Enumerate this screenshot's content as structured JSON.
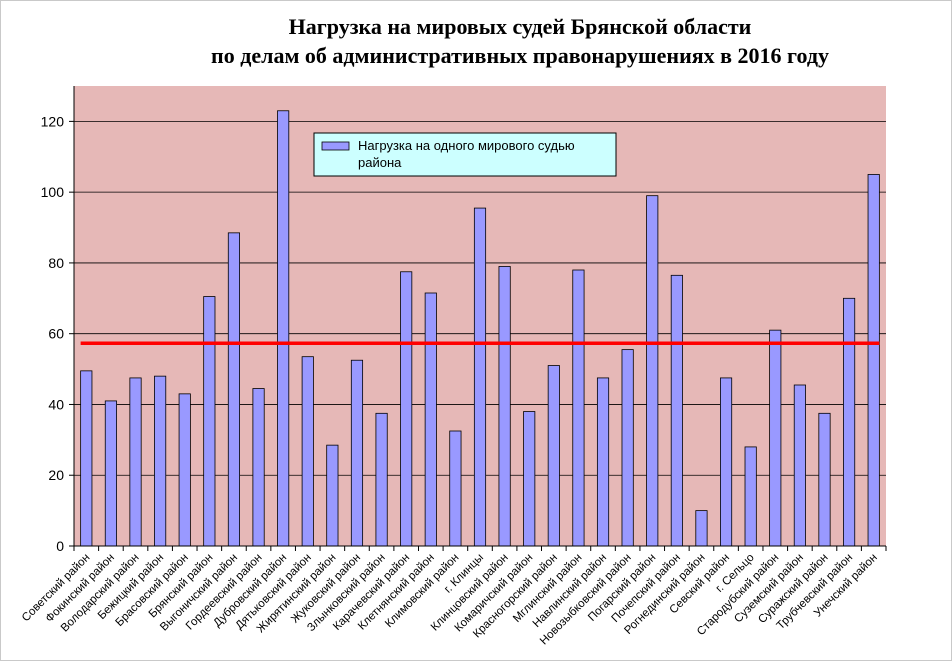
{
  "chart_data": {
    "type": "bar",
    "title": [
      "Нагрузка на мировых судей Брянской области",
      "по делам об административных правонарушениях в 2016 году"
    ],
    "xlabel": "",
    "ylabel": "",
    "ylim": [
      0,
      130
    ],
    "yticks": [
      0,
      20,
      40,
      60,
      80,
      100,
      120
    ],
    "grid": true,
    "legend_position": "top-center",
    "series": [
      {
        "name": "Нагрузка на одного мирового судью района",
        "color": "#9999ff",
        "values": [
          49.5,
          41,
          47.5,
          48,
          43,
          70.5,
          88.5,
          44.5,
          123,
          53.5,
          28.5,
          52.5,
          37.5,
          77.5,
          71.5,
          32.5,
          95.5,
          79,
          38,
          51,
          78,
          47.5,
          55.5,
          99,
          76.5,
          10,
          47.5,
          28,
          61,
          45.5,
          37.5,
          70,
          105
        ]
      }
    ],
    "categories": [
      "Советский район",
      "Фокинский район",
      "Володарский район",
      "Бежицкий район",
      "Брасовский район",
      "Брянский район",
      "Выгоничский район",
      "Гордеевский район",
      "Дубровский район",
      "Дятьковский район",
      "Жирятинский район",
      "Жуковский район",
      "Злынковский район",
      "Карачевский район",
      "Клетнянский район",
      "Климовский район",
      "г. Клинцы",
      "Клинцовский район",
      "Комаричский район",
      "Красногорский район",
      "Мглинский район",
      "Навлинский район",
      "Новозыбковский район",
      "Погарский район",
      "Почепский район",
      "Рогнединский район",
      "Севский район",
      "г. Сельцо",
      "Стародубский район",
      "Суземский район",
      "Суражский район",
      "Трубчевский район",
      "Унечский район"
    ],
    "reference_line": {
      "value": 57.3,
      "color": "#ff0000"
    },
    "plot_background": "#e6b8b7"
  }
}
